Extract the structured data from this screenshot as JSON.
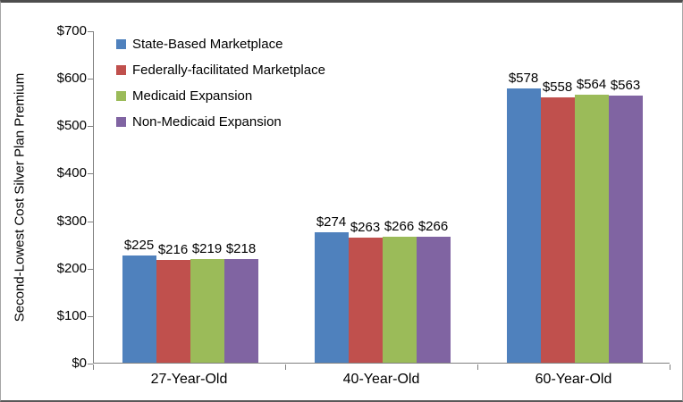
{
  "chart_data": {
    "type": "bar",
    "title": "",
    "ylabel": "Second-Lowest Cost Silver Plan Premium",
    "xlabel": "",
    "categories": [
      "27-Year-Old",
      "40-Year-Old",
      "60-Year-Old"
    ],
    "series": [
      {
        "name": "State-Based Marketplace",
        "color": "#4F81BD",
        "values": [
          225,
          274,
          578
        ]
      },
      {
        "name": "Federally-facilitated Marketplace",
        "color": "#C0504D",
        "values": [
          216,
          263,
          558
        ]
      },
      {
        "name": "Medicaid Expansion",
        "color": "#9BBB59",
        "values": [
          219,
          266,
          564
        ]
      },
      {
        "name": "Non-Medicaid Expansion",
        "color": "#8064A2",
        "values": [
          218,
          266,
          563
        ]
      }
    ],
    "data_labels": [
      [
        "$225",
        "$216",
        "$219",
        "$218"
      ],
      [
        "$274",
        "$263",
        "$266",
        "$266"
      ],
      [
        "$578",
        "$558",
        "$564",
        "$563"
      ]
    ],
    "ylim": [
      0,
      700
    ],
    "ytick_interval": 100,
    "ytick_labels": [
      "$0",
      "$100",
      "$200",
      "$300",
      "$400",
      "$500",
      "$600",
      "$700"
    ],
    "legend_position": "top-left",
    "grid": false,
    "axis_color": "#808080",
    "text_color": "#000000"
  }
}
